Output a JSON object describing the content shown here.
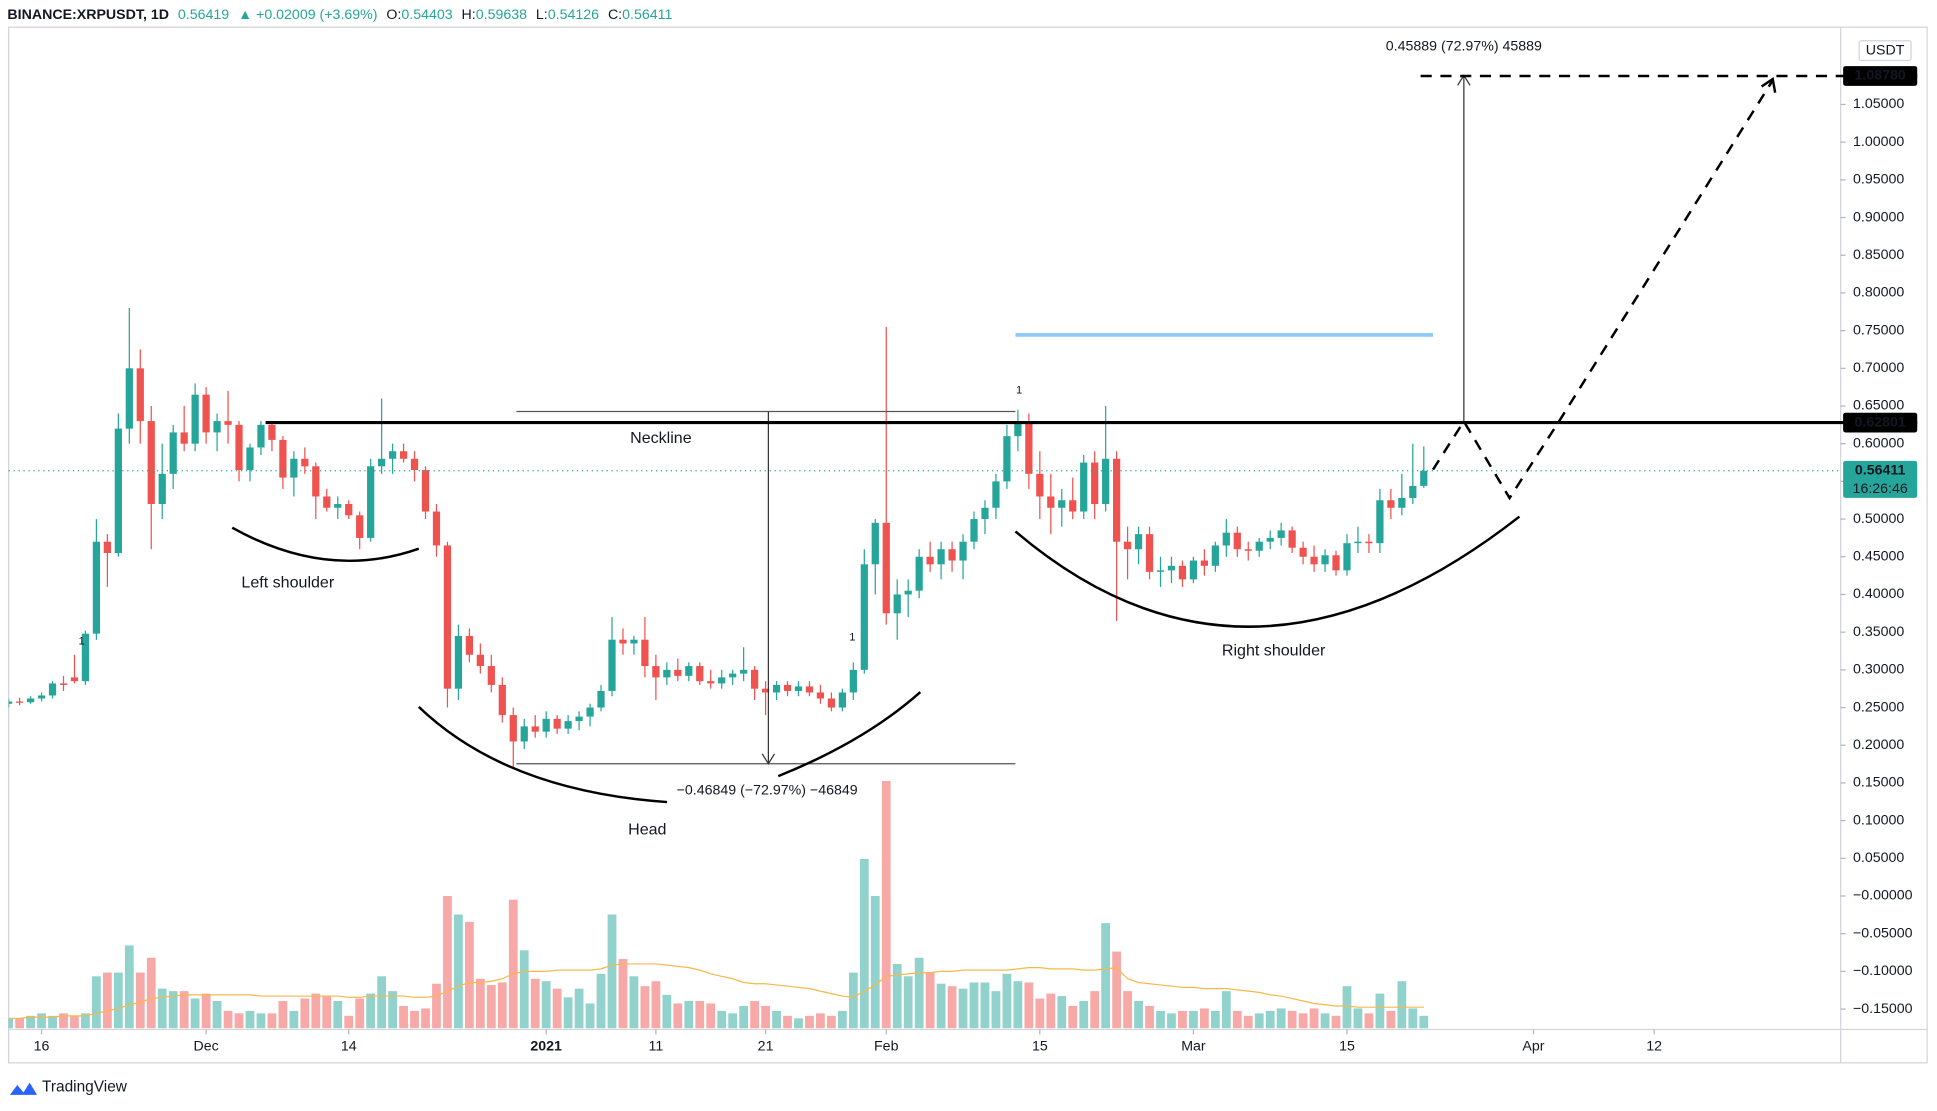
{
  "brand": "TradingView",
  "chart_data": {
    "type": "candlestick",
    "title": "BINANCE:XRPUSDT, 1D",
    "last": "0.56419",
    "change": "▲ +0.02009 (+3.69%)",
    "ohlc": [
      {
        "label": "O:",
        "value": "0.54403"
      },
      {
        "label": "H:",
        "value": "0.59638"
      },
      {
        "label": "L:",
        "value": "0.54126"
      },
      {
        "label": "C:",
        "value": "0.56411"
      }
    ],
    "currency": "USDT",
    "countdown": "16:26:46",
    "annotations": [
      "Neckline",
      "Left shoulder",
      "Head",
      "Right shoulder"
    ],
    "measures": [
      "0.45889 (72.97%) 45889",
      "−0.46849 (−72.97%) −46849"
    ],
    "signals": [
      "1",
      "1",
      "1"
    ],
    "up_color": "#26a69a",
    "down_color": "#ef5350",
    "volume_ma_color": "#f7b84b",
    "grid": false,
    "x": [
      "2020-11-13",
      "2020-11-14",
      "2020-11-15",
      "2020-11-16",
      "2020-11-17",
      "2020-11-18",
      "2020-11-19",
      "2020-11-20",
      "2020-11-21",
      "2020-11-22",
      "2020-11-23",
      "2020-11-24",
      "2020-11-25",
      "2020-11-26",
      "2020-11-27",
      "2020-11-28",
      "2020-11-29",
      "2020-11-30",
      "2020-12-01",
      "2020-12-02",
      "2020-12-03",
      "2020-12-04",
      "2020-12-05",
      "2020-12-06",
      "2020-12-07",
      "2020-12-08",
      "2020-12-09",
      "2020-12-10",
      "2020-12-11",
      "2020-12-12",
      "2020-12-13",
      "2020-12-14",
      "2020-12-15",
      "2020-12-16",
      "2020-12-17",
      "2020-12-18",
      "2020-12-19",
      "2020-12-20",
      "2020-12-21",
      "2020-12-22",
      "2020-12-23",
      "2020-12-24",
      "2020-12-25",
      "2020-12-26",
      "2020-12-27",
      "2020-12-28",
      "2020-12-29",
      "2020-12-30",
      "2020-12-31",
      "2021-01-01",
      "2021-01-02",
      "2021-01-03",
      "2021-01-04",
      "2021-01-05",
      "2021-01-06",
      "2021-01-07",
      "2021-01-08",
      "2021-01-09",
      "2021-01-10",
      "2021-01-11",
      "2021-01-12",
      "2021-01-13",
      "2021-01-14",
      "2021-01-15",
      "2021-01-16",
      "2021-01-17",
      "2021-01-18",
      "2021-01-19",
      "2021-01-20",
      "2021-01-21",
      "2021-01-22",
      "2021-01-23",
      "2021-01-24",
      "2021-01-25",
      "2021-01-26",
      "2021-01-27",
      "2021-01-28",
      "2021-01-29",
      "2021-01-30",
      "2021-01-31",
      "2021-02-01",
      "2021-02-02",
      "2021-02-03",
      "2021-02-04",
      "2021-02-05",
      "2021-02-06",
      "2021-02-07",
      "2021-02-08",
      "2021-02-09",
      "2021-02-10",
      "2021-02-11",
      "2021-02-12",
      "2021-02-13",
      "2021-02-14",
      "2021-02-15",
      "2021-02-16",
      "2021-02-17",
      "2021-02-18",
      "2021-02-19",
      "2021-02-20",
      "2021-02-21",
      "2021-02-22",
      "2021-02-23",
      "2021-02-24",
      "2021-02-25",
      "2021-02-26",
      "2021-02-27",
      "2021-02-28",
      "2021-03-01",
      "2021-03-02",
      "2021-03-03",
      "2021-03-04",
      "2021-03-05",
      "2021-03-06",
      "2021-03-07",
      "2021-03-08",
      "2021-03-09",
      "2021-03-10",
      "2021-03-11",
      "2021-03-12",
      "2021-03-13",
      "2021-03-14",
      "2021-03-15",
      "2021-03-16",
      "2021-03-17",
      "2021-03-18",
      "2021-03-19",
      "2021-03-20",
      "2021-03-21",
      "2021-03-22"
    ],
    "open": [
      0.255,
      0.258,
      0.257,
      0.262,
      0.266,
      0.282,
      0.29,
      0.285,
      0.348,
      0.47,
      0.455,
      0.62,
      0.7,
      0.63,
      0.52,
      0.56,
      0.615,
      0.6,
      0.665,
      0.615,
      0.63,
      0.625,
      0.565,
      0.595,
      0.625,
      0.605,
      0.555,
      0.58,
      0.57,
      0.53,
      0.515,
      0.52,
      0.505,
      0.475,
      0.57,
      0.58,
      0.59,
      0.58,
      0.565,
      0.51,
      0.465,
      0.275,
      0.345,
      0.32,
      0.305,
      0.28,
      0.24,
      0.205,
      0.225,
      0.218,
      0.235,
      0.222,
      0.232,
      0.238,
      0.25,
      0.272,
      0.34,
      0.335,
      0.34,
      0.305,
      0.29,
      0.3,
      0.292,
      0.305,
      0.285,
      0.282,
      0.29,
      0.295,
      0.3,
      0.275,
      0.27,
      0.28,
      0.272,
      0.278,
      0.27,
      0.262,
      0.25,
      0.27,
      0.3,
      0.44,
      0.495,
      0.375,
      0.4,
      0.405,
      0.45,
      0.44,
      0.46,
      0.445,
      0.47,
      0.5,
      0.515,
      0.55,
      0.61,
      0.63,
      0.56,
      0.53,
      0.515,
      0.525,
      0.51,
      0.575,
      0.52,
      0.58,
      0.47,
      0.46,
      0.48,
      0.43,
      0.432,
      0.438,
      0.42,
      0.445,
      0.438,
      0.465,
      0.482,
      0.46,
      0.458,
      0.47,
      0.475,
      0.485,
      0.462,
      0.45,
      0.44,
      0.452,
      0.432,
      0.468,
      0.47,
      0.468,
      0.525,
      0.515,
      0.528,
      0.54403
    ],
    "high": [
      0.262,
      0.263,
      0.265,
      0.27,
      0.285,
      0.292,
      0.32,
      0.352,
      0.5,
      0.48,
      0.64,
      0.78,
      0.725,
      0.65,
      0.6,
      0.625,
      0.65,
      0.68,
      0.675,
      0.64,
      0.67,
      0.63,
      0.6,
      0.63,
      0.63,
      0.61,
      0.59,
      0.595,
      0.575,
      0.54,
      0.53,
      0.525,
      0.51,
      0.58,
      0.66,
      0.6,
      0.6,
      0.59,
      0.57,
      0.52,
      0.47,
      0.36,
      0.355,
      0.335,
      0.32,
      0.29,
      0.25,
      0.235,
      0.24,
      0.245,
      0.24,
      0.24,
      0.245,
      0.255,
      0.28,
      0.37,
      0.355,
      0.345,
      0.37,
      0.32,
      0.31,
      0.315,
      0.31,
      0.31,
      0.3,
      0.3,
      0.3,
      0.33,
      0.305,
      0.285,
      0.285,
      0.285,
      0.285,
      0.285,
      0.28,
      0.27,
      0.275,
      0.31,
      0.46,
      0.5,
      0.755,
      0.42,
      0.42,
      0.46,
      0.47,
      0.47,
      0.47,
      0.48,
      0.51,
      0.525,
      0.56,
      0.625,
      0.645,
      0.64,
      0.59,
      0.56,
      0.54,
      0.555,
      0.585,
      0.59,
      0.65,
      0.59,
      0.49,
      0.49,
      0.49,
      0.45,
      0.45,
      0.445,
      0.45,
      0.46,
      0.47,
      0.5,
      0.49,
      0.47,
      0.475,
      0.485,
      0.495,
      0.49,
      0.47,
      0.465,
      0.46,
      0.458,
      0.48,
      0.49,
      0.48,
      0.54,
      0.54,
      0.56,
      0.6,
      0.59638
    ],
    "low": [
      0.25,
      0.253,
      0.255,
      0.258,
      0.262,
      0.272,
      0.282,
      0.28,
      0.34,
      0.41,
      0.45,
      0.6,
      0.6,
      0.46,
      0.5,
      0.54,
      0.59,
      0.59,
      0.6,
      0.59,
      0.6,
      0.55,
      0.55,
      0.585,
      0.59,
      0.54,
      0.53,
      0.56,
      0.5,
      0.51,
      0.5,
      0.5,
      0.46,
      0.47,
      0.56,
      0.56,
      0.575,
      0.55,
      0.5,
      0.45,
      0.25,
      0.26,
      0.31,
      0.295,
      0.27,
      0.23,
      0.17,
      0.195,
      0.21,
      0.21,
      0.215,
      0.215,
      0.22,
      0.225,
      0.245,
      0.265,
      0.32,
      0.32,
      0.29,
      0.26,
      0.28,
      0.285,
      0.285,
      0.28,
      0.275,
      0.275,
      0.28,
      0.285,
      0.26,
      0.24,
      0.26,
      0.265,
      0.265,
      0.265,
      0.255,
      0.245,
      0.245,
      0.26,
      0.295,
      0.4,
      0.36,
      0.34,
      0.37,
      0.395,
      0.43,
      0.42,
      0.43,
      0.42,
      0.46,
      0.48,
      0.5,
      0.54,
      0.59,
      0.54,
      0.5,
      0.48,
      0.49,
      0.5,
      0.5,
      0.5,
      0.51,
      0.365,
      0.42,
      0.44,
      0.42,
      0.41,
      0.415,
      0.41,
      0.415,
      0.425,
      0.43,
      0.45,
      0.45,
      0.445,
      0.45,
      0.46,
      0.465,
      0.455,
      0.44,
      0.43,
      0.43,
      0.425,
      0.425,
      0.455,
      0.455,
      0.455,
      0.5,
      0.505,
      0.52,
      0.54126
    ],
    "close": [
      0.258,
      0.257,
      0.262,
      0.266,
      0.282,
      0.28,
      0.285,
      0.348,
      0.47,
      0.455,
      0.62,
      0.7,
      0.63,
      0.52,
      0.56,
      0.615,
      0.6,
      0.665,
      0.615,
      0.63,
      0.625,
      0.565,
      0.595,
      0.625,
      0.605,
      0.555,
      0.58,
      0.57,
      0.53,
      0.515,
      0.52,
      0.505,
      0.475,
      0.57,
      0.58,
      0.59,
      0.58,
      0.565,
      0.51,
      0.465,
      0.275,
      0.345,
      0.32,
      0.305,
      0.28,
      0.24,
      0.205,
      0.225,
      0.218,
      0.235,
      0.222,
      0.232,
      0.238,
      0.25,
      0.272,
      0.34,
      0.335,
      0.34,
      0.305,
      0.29,
      0.3,
      0.292,
      0.305,
      0.285,
      0.282,
      0.29,
      0.295,
      0.3,
      0.275,
      0.27,
      0.28,
      0.272,
      0.278,
      0.27,
      0.262,
      0.25,
      0.27,
      0.3,
      0.44,
      0.495,
      0.375,
      0.4,
      0.405,
      0.45,
      0.44,
      0.46,
      0.445,
      0.47,
      0.5,
      0.515,
      0.55,
      0.61,
      0.63,
      0.56,
      0.53,
      0.515,
      0.525,
      0.51,
      0.575,
      0.52,
      0.58,
      0.47,
      0.46,
      0.48,
      0.43,
      0.432,
      0.438,
      0.42,
      0.445,
      0.438,
      0.465,
      0.482,
      0.46,
      0.458,
      0.47,
      0.475,
      0.485,
      0.462,
      0.45,
      0.44,
      0.452,
      0.432,
      0.468,
      0.47,
      0.468,
      0.525,
      0.515,
      0.528,
      0.544,
      0.56411
    ],
    "volume": [
      8,
      8,
      10,
      12,
      10,
      12,
      10,
      12,
      42,
      45,
      45,
      67,
      45,
      57,
      32,
      30,
      30,
      24,
      28,
      22,
      14,
      12,
      14,
      12,
      12,
      22,
      14,
      24,
      28,
      26,
      22,
      10,
      24,
      28,
      42,
      30,
      18,
      14,
      16,
      36,
      107,
      92,
      86,
      40,
      35,
      37,
      104,
      63,
      40,
      38,
      32,
      25,
      32,
      20,
      44,
      92,
      56,
      42,
      34,
      38,
      27,
      20,
      22,
      22,
      20,
      14,
      12,
      18,
      22,
      18,
      14,
      10,
      8,
      10,
      12,
      10,
      14,
      45,
      137,
      107,
      200,
      52,
      42,
      57,
      45,
      36,
      34,
      32,
      37,
      37,
      30,
      44,
      38,
      37,
      24,
      28,
      26,
      18,
      22,
      30,
      85,
      62,
      30,
      22,
      18,
      14,
      12,
      14,
      14,
      16,
      14,
      30,
      14,
      10,
      12,
      14,
      16,
      14,
      12,
      16,
      12,
      10,
      34,
      16,
      12,
      28,
      14,
      38,
      16,
      10
    ],
    "volume_ma": [
      8,
      8,
      9,
      9,
      9,
      10,
      10,
      10,
      12,
      14,
      16,
      19,
      21,
      24,
      25,
      26,
      27,
      27,
      27,
      27,
      27,
      27,
      27,
      26,
      26,
      26,
      26,
      26,
      26,
      26,
      26,
      25,
      25,
      26,
      26,
      26,
      26,
      25,
      25,
      26,
      30,
      34,
      37,
      37,
      38,
      40,
      44,
      46,
      46,
      46,
      47,
      47,
      47,
      47,
      48,
      51,
      52,
      52,
      52,
      52,
      51,
      50,
      49,
      47,
      44,
      42,
      40,
      37,
      36,
      36,
      35,
      34,
      33,
      32,
      30,
      28,
      26,
      25,
      30,
      35,
      42,
      43,
      44,
      45,
      45,
      46,
      46,
      47,
      47,
      47,
      47,
      47,
      48,
      49,
      49,
      48,
      48,
      48,
      47,
      47,
      48,
      49,
      40,
      37,
      36,
      35,
      34,
      33,
      33,
      32,
      32,
      32,
      31,
      30,
      29,
      27,
      26,
      24,
      22,
      20,
      19,
      18,
      18,
      17,
      17,
      17,
      17,
      17,
      17,
      17
    ],
    "xlim": [
      "2020-11-13",
      "2021-04-29"
    ],
    "xticks": [
      {
        "value": "2020-11-16",
        "label": "16"
      },
      {
        "value": "2020-12-01",
        "label": "Dec"
      },
      {
        "value": "2020-12-14",
        "label": "14"
      },
      {
        "value": "2021-01-01",
        "label": "2021"
      },
      {
        "value": "2021-01-11",
        "label": "11"
      },
      {
        "value": "2021-01-21",
        "label": "21"
      },
      {
        "value": "2021-02-01",
        "label": "Feb"
      },
      {
        "value": "2021-02-15",
        "label": "15"
      },
      {
        "value": "2021-03-01",
        "label": "Mar"
      },
      {
        "value": "2021-03-15",
        "label": "15"
      },
      {
        "value": "2021-04-01",
        "label": "Apr"
      },
      {
        "value": "2021-04-12",
        "label": "12"
      }
    ],
    "ylim": [
      -0.177,
      1.1525
    ],
    "yticks": [
      {
        "value": -0.15,
        "label": "−0.15000"
      },
      {
        "value": -0.1,
        "label": "−0.10000"
      },
      {
        "value": -0.05,
        "label": "−0.05000"
      },
      {
        "value": 0,
        "label": "−0.00000"
      },
      {
        "value": 0.05,
        "label": "0.05000"
      },
      {
        "value": 0.1,
        "label": "0.10000"
      },
      {
        "value": 0.15,
        "label": "0.15000"
      },
      {
        "value": 0.2,
        "label": "0.20000"
      },
      {
        "value": 0.25,
        "label": "0.25000"
      },
      {
        "value": 0.3,
        "label": "0.30000"
      },
      {
        "value": 0.35,
        "label": "0.35000"
      },
      {
        "value": 0.4,
        "label": "0.40000"
      },
      {
        "value": 0.45,
        "label": "0.45000"
      },
      {
        "value": 0.5,
        "label": "0.50000"
      },
      {
        "value": 0.55,
        "label": "0.55000"
      },
      {
        "value": 0.6,
        "label": "0.60000"
      },
      {
        "value": 0.65,
        "label": "0.65000"
      },
      {
        "value": 0.7,
        "label": "0.70000"
      },
      {
        "value": 0.75,
        "label": "0.75000"
      },
      {
        "value": 0.8,
        "label": "0.80000"
      },
      {
        "value": 0.85,
        "label": "0.85000"
      },
      {
        "value": 0.9,
        "label": "0.90000"
      },
      {
        "value": 0.95,
        "label": "0.95000"
      },
      {
        "value": 1.0,
        "label": "1.00000"
      },
      {
        "value": 1.05,
        "label": "1.05000"
      }
    ],
    "price_labels": [
      {
        "value": 1.0878,
        "label": "1.08780"
      },
      {
        "value": 0.62801,
        "label": "0.62801"
      },
      {
        "value": 0.56411,
        "label": "0.56411"
      }
    ]
  }
}
